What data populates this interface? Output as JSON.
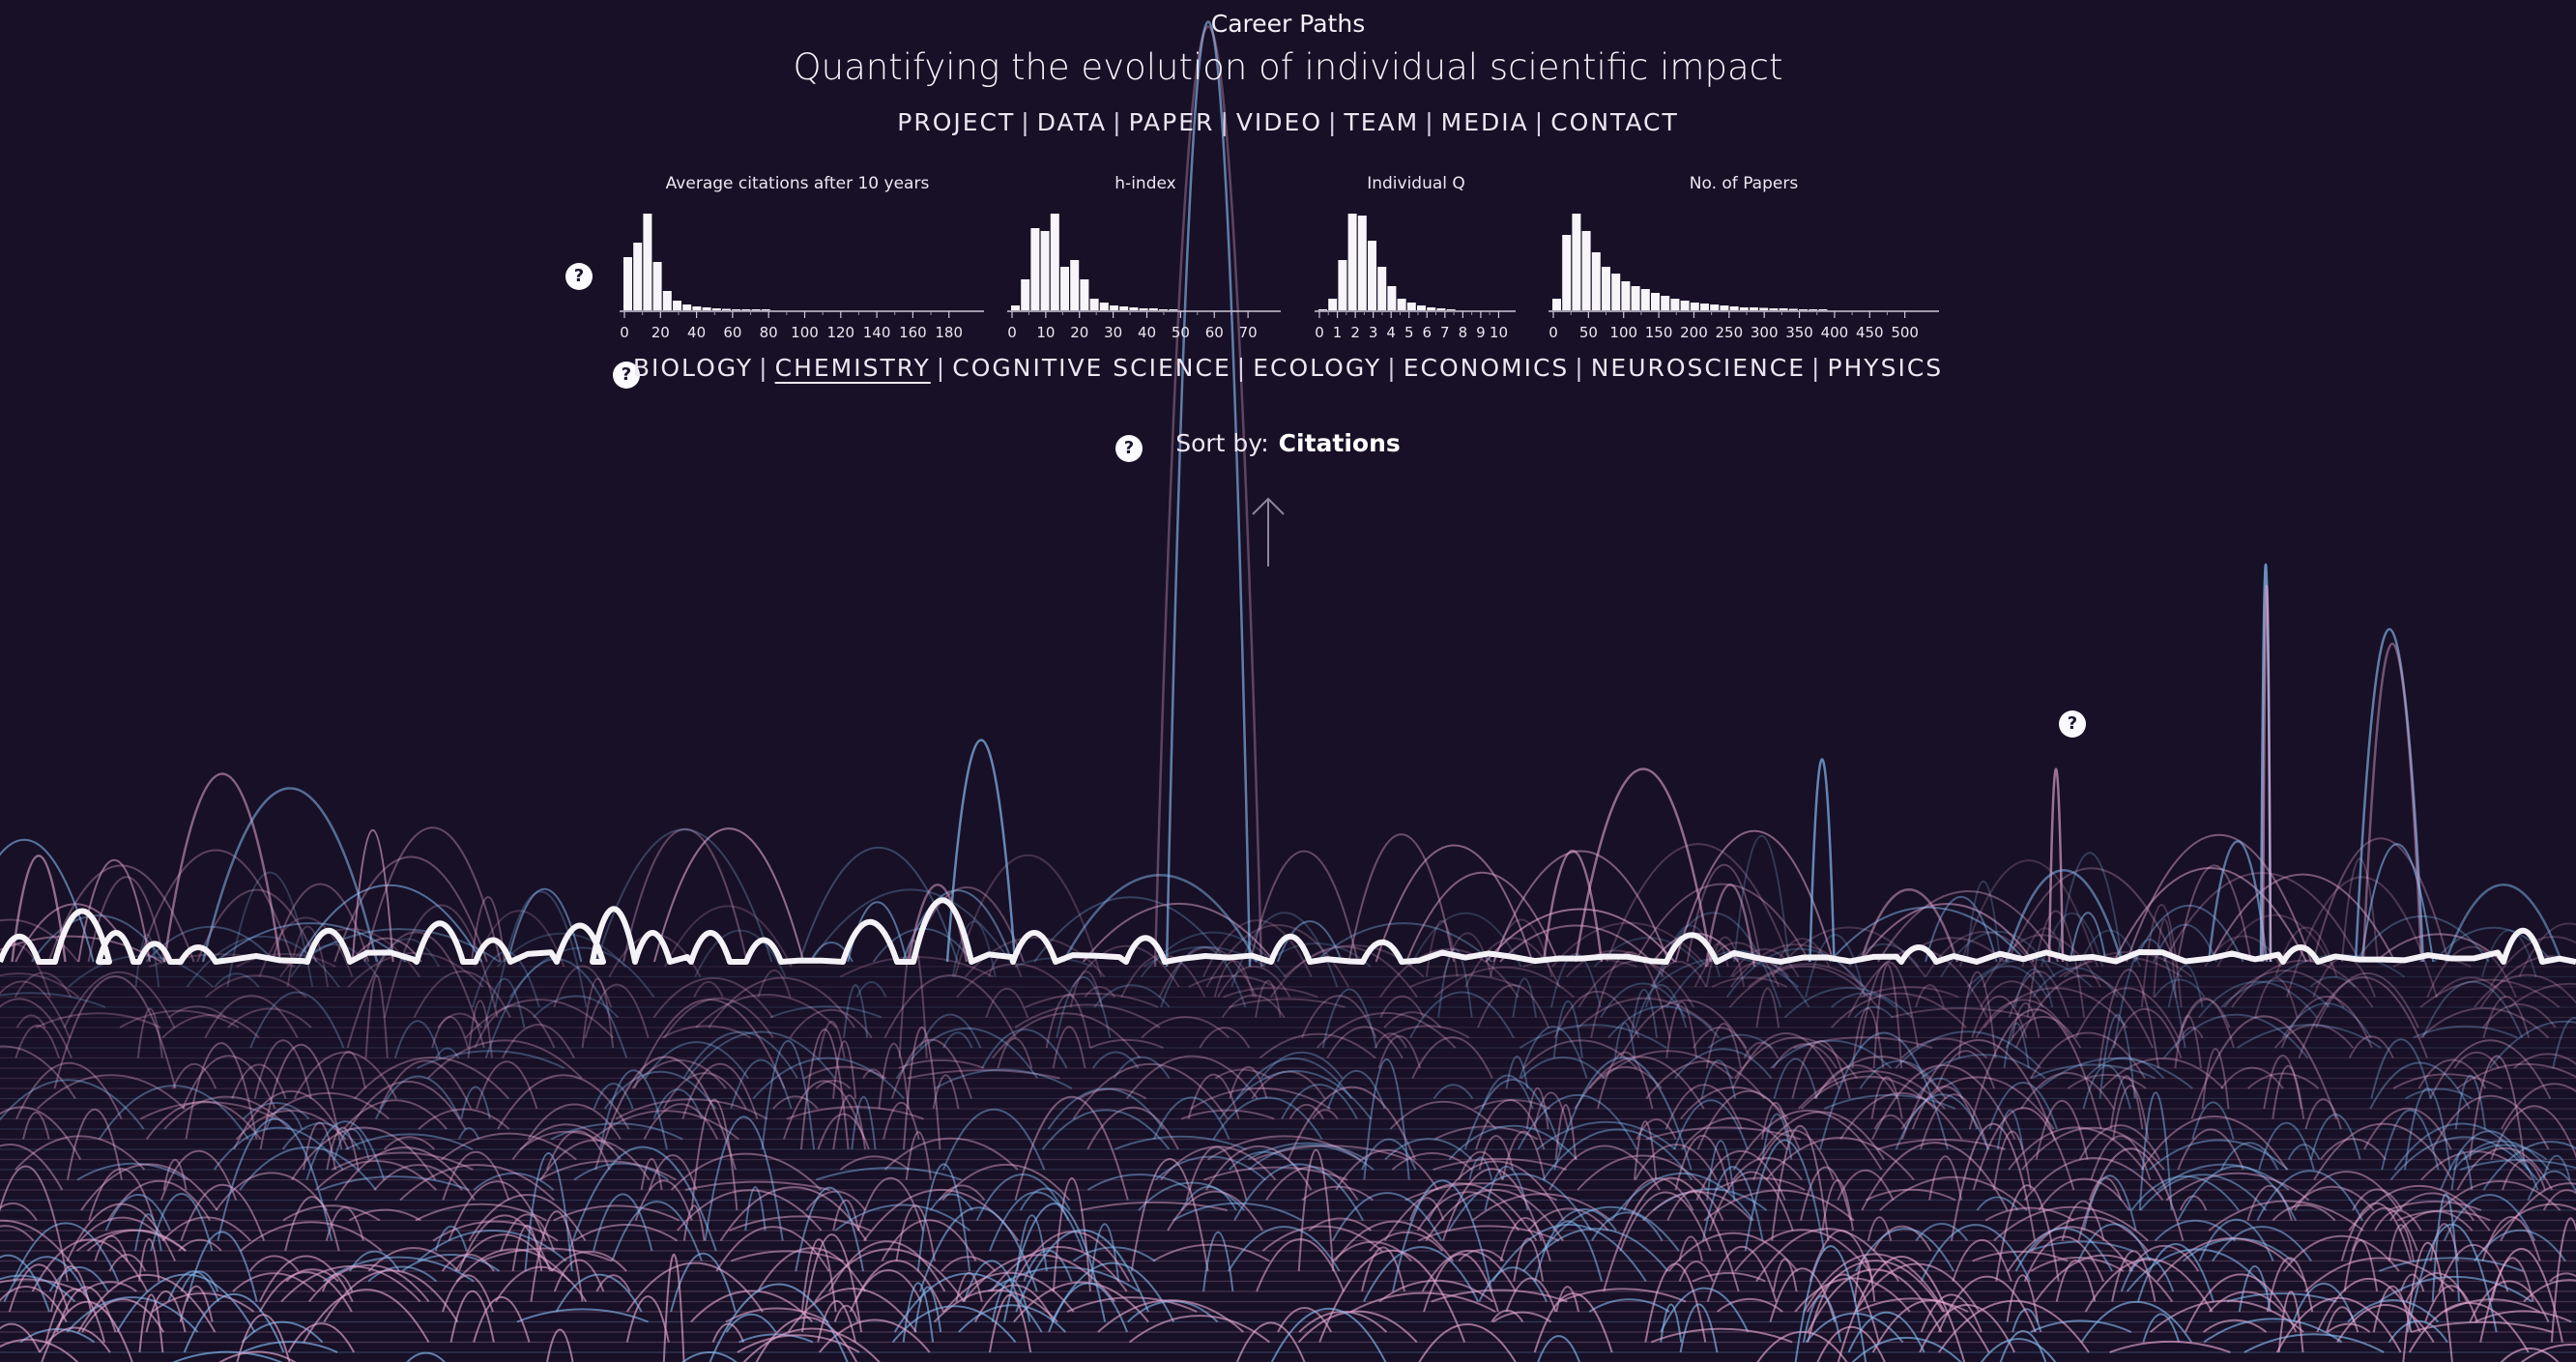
{
  "header": {
    "top_label": "Career Paths",
    "title": "Quantifying the evolution of individual scientific impact"
  },
  "nav": {
    "items": [
      "PROJECT",
      "DATA",
      "PAPER",
      "VIDEO",
      "TEAM",
      "MEDIA",
      "CONTACT"
    ]
  },
  "histograms": [
    {
      "title": "Average citations after 10 years",
      "ticks": [
        "0",
        "20",
        "40",
        "60",
        "80",
        "100",
        "120",
        "140",
        "160",
        "180"
      ],
      "bars": [
        0.55,
        0.7,
        1.0,
        0.5,
        0.2,
        0.1,
        0.06,
        0.04,
        0.03,
        0.02,
        0.015,
        0.01,
        0.01,
        0.005,
        0.005
      ]
    },
    {
      "title": "h-index",
      "ticks": [
        "0",
        "10",
        "20",
        "30",
        "40",
        "50",
        "60",
        "70"
      ],
      "bars": [
        0.05,
        0.32,
        0.85,
        0.82,
        1.0,
        0.45,
        0.52,
        0.32,
        0.12,
        0.08,
        0.05,
        0.04,
        0.03,
        0.02,
        0.02,
        0.01,
        0.01
      ]
    },
    {
      "title": "Individual Q",
      "ticks": [
        "0",
        "1",
        "2",
        "3",
        "4",
        "5",
        "6",
        "7",
        "8",
        "9",
        "10"
      ],
      "bars": [
        0.0,
        0.12,
        0.52,
        1.0,
        0.98,
        0.72,
        0.45,
        0.25,
        0.12,
        0.08,
        0.05,
        0.03,
        0.02,
        0.01
      ]
    },
    {
      "title": "No. of Papers",
      "ticks": [
        "0",
        "50",
        "100",
        "150",
        "200",
        "250",
        "300",
        "350",
        "400",
        "450",
        "500"
      ],
      "bars": [
        0.12,
        0.78,
        1.0,
        0.82,
        0.6,
        0.45,
        0.38,
        0.3,
        0.25,
        0.22,
        0.18,
        0.15,
        0.12,
        0.1,
        0.08,
        0.07,
        0.06,
        0.05,
        0.04,
        0.03,
        0.03,
        0.025,
        0.02,
        0.02,
        0.015,
        0.01,
        0.01,
        0.01
      ]
    }
  ],
  "fields": {
    "items": [
      "BIOLOGY",
      "CHEMISTRY",
      "COGNITIVE SCIENCE",
      "ECOLOGY",
      "ECONOMICS",
      "NEUROSCIENCE",
      "PHYSICS"
    ],
    "active": "CHEMISTRY"
  },
  "sort": {
    "label": "Sort by:",
    "value": "Citations"
  },
  "help_label": "?",
  "colors": {
    "background": "#171026",
    "pink": "#e3a6cf",
    "blue": "#86b9ef",
    "white": "#f4f2f6"
  }
}
